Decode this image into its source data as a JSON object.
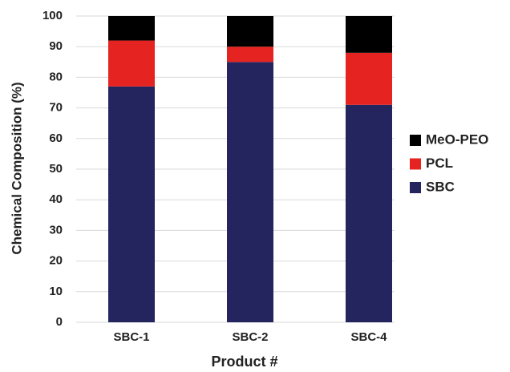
{
  "chart_data": {
    "type": "stacked_bar",
    "x_label": "Product #",
    "y_label": "Chemical Composition (%)",
    "categories": [
      "SBC-1",
      "SBC-2",
      "SBC-4"
    ],
    "series": [
      {
        "name": "SBC",
        "color": "#24245e",
        "values": [
          77,
          85,
          71
        ]
      },
      {
        "name": "PCL",
        "color": "#e52421",
        "values": [
          15,
          5,
          17
        ]
      },
      {
        "name": "MeO-PEO",
        "color": "#000000",
        "values": [
          8,
          10,
          12
        ]
      }
    ],
    "ylim": [
      0,
      100
    ],
    "yticks": [
      0,
      10,
      20,
      30,
      40,
      50,
      60,
      70,
      80,
      90,
      100
    ],
    "grid": true,
    "legend": "right"
  }
}
